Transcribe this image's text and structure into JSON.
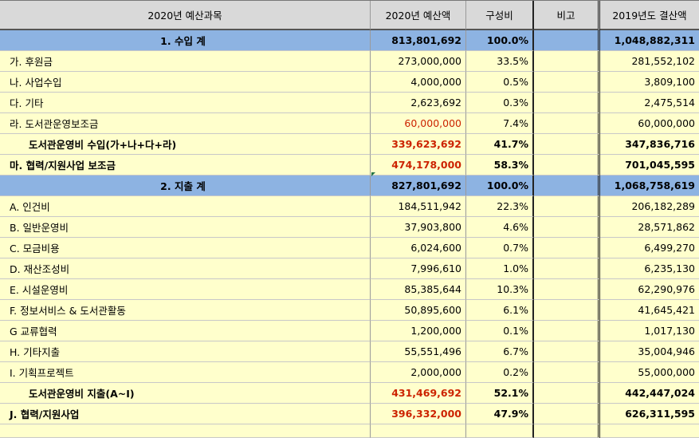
{
  "header": {
    "col_item": "2020년 예산과목",
    "col_budget": "2020년 예산액",
    "col_ratio": "구성비",
    "col_note": "비고",
    "col_prev": "2019년도 결산액"
  },
  "rows": [
    {
      "type": "section",
      "label": "1. 수입 계",
      "budget": "813,801,692",
      "ratio": "100.0%",
      "note": "",
      "prev": "1,048,882,311",
      "red": false
    },
    {
      "type": "item",
      "label": "가. 후원금",
      "budget": "273,000,000",
      "ratio": "33.5%",
      "note": "",
      "prev": "281,552,102",
      "red": false
    },
    {
      "type": "item",
      "label": "나. 사업수입",
      "budget": "4,000,000",
      "ratio": "0.5%",
      "note": "",
      "prev": "3,809,100",
      "red": false
    },
    {
      "type": "item",
      "label": "다. 기타",
      "budget": "2,623,692",
      "ratio": "0.3%",
      "note": "",
      "prev": "2,475,514",
      "red": false
    },
    {
      "type": "item",
      "label": "라. 도서관운영보조금",
      "budget": "60,000,000",
      "ratio": "7.4%",
      "note": "",
      "prev": "60,000,000",
      "red": true
    },
    {
      "type": "subtotal",
      "label": "도서관운영비 수입(가+나+다+라)",
      "budget": "339,623,692",
      "ratio": "41.7%",
      "note": "",
      "prev": "347,836,716",
      "red": true
    },
    {
      "type": "bold",
      "label": "마. 협력/지원사업 보조금",
      "budget": "474,178,000",
      "ratio": "58.3%",
      "note": "",
      "prev": "701,045,595",
      "red": true
    },
    {
      "type": "section",
      "label": "2. 지출 계",
      "budget": "827,801,692",
      "ratio": "100.0%",
      "note": "",
      "prev": "1,068,758,619",
      "red": false
    },
    {
      "type": "item",
      "label": "A. 인건비",
      "budget": "184,511,942",
      "ratio": "22.3%",
      "note": "",
      "prev": "206,182,289",
      "red": false
    },
    {
      "type": "item",
      "label": "B. 일반운영비",
      "budget": "37,903,800",
      "ratio": "4.6%",
      "note": "",
      "prev": "28,571,862",
      "red": false
    },
    {
      "type": "item",
      "label": "C. 모금비용",
      "budget": "6,024,600",
      "ratio": "0.7%",
      "note": "",
      "prev": "6,499,270",
      "red": false
    },
    {
      "type": "item",
      "label": "D. 재산조성비",
      "budget": "7,996,610",
      "ratio": "1.0%",
      "note": "",
      "prev": "6,235,130",
      "red": false
    },
    {
      "type": "item",
      "label": "E. 시설운영비",
      "budget": "85,385,644",
      "ratio": "10.3%",
      "note": "",
      "prev": "62,290,976",
      "red": false
    },
    {
      "type": "item",
      "label": "F. 정보서비스 & 도서관활동",
      "budget": "50,895,600",
      "ratio": "6.1%",
      "note": "",
      "prev": "41,645,421",
      "red": false
    },
    {
      "type": "item",
      "label": "G 교류협력",
      "budget": "1,200,000",
      "ratio": "0.1%",
      "note": "",
      "prev": "1,017,130",
      "red": false
    },
    {
      "type": "item",
      "label": "H. 기타지출",
      "budget": "55,551,496",
      "ratio": "6.7%",
      "note": "",
      "prev": "35,004,946",
      "red": false
    },
    {
      "type": "item",
      "label": "I. 기획프로젝트",
      "budget": "2,000,000",
      "ratio": "0.2%",
      "note": "",
      "prev": "55,000,000",
      "red": false
    },
    {
      "type": "subtotal",
      "label": "도서관운영비 지출(A~I)",
      "budget": "431,469,692",
      "ratio": "52.1%",
      "note": "",
      "prev": "442,447,024",
      "red": true
    },
    {
      "type": "bold",
      "label": "J. 협력/지원사업",
      "budget": "396,332,000",
      "ratio": "47.9%",
      "note": "",
      "prev": "626,311,595",
      "red": true
    }
  ]
}
